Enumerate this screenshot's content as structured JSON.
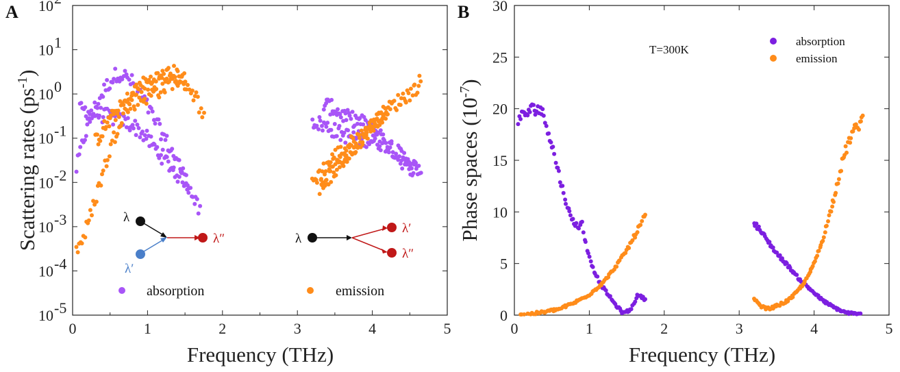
{
  "colors": {
    "absorption": "#a855f7",
    "absorptionB": "#7c1fe0",
    "emission": "#ff8c1a",
    "dark": "#111111",
    "blue": "#4a7fc9",
    "red": "#c01818"
  },
  "chart_data": [
    {
      "panel": "A",
      "type": "scatter",
      "title": "",
      "xlabel": "Frequency (THz)",
      "ylabel_main": "Scattering rates (ps",
      "ylabel_sup": "-1",
      "ylabel_end": ")",
      "xscale": "linear",
      "yscale": "log",
      "xlim": [
        0,
        5
      ],
      "ylim": [
        1e-05,
        100
      ],
      "xticks": [
        0,
        1,
        2,
        3,
        4,
        5
      ],
      "xtick_labels": [
        "0",
        "1",
        "2",
        "3",
        "4",
        "5"
      ],
      "yticks_exp": [
        -5,
        -4,
        -3,
        -2,
        -1,
        0,
        1,
        2
      ],
      "ytick_base": "10",
      "ytick_exp_labels": [
        "-5",
        "-4",
        "-3",
        "-2",
        "-1",
        "0",
        "1",
        "2"
      ],
      "legend": [
        {
          "name": "absorption",
          "color_key": "absorption"
        },
        {
          "name": "emission",
          "color_key": "emission"
        }
      ],
      "series": [
        {
          "name": "absorption",
          "branches": [
            {
              "x": [
                0.05,
                0.15,
                0.3,
                0.45,
                0.6,
                0.7,
                0.8,
                0.9,
                1.0,
                1.1,
                1.2,
                1.3,
                1.4,
                1.5,
                1.6,
                1.7
              ],
              "y": [
                0.02,
                0.1,
                0.5,
                1.5,
                3.0,
                2.5,
                1.8,
                1.0,
                0.5,
                0.25,
                0.12,
                0.06,
                0.03,
                0.012,
                0.005,
                0.002
              ]
            },
            {
              "x": [
                0.1,
                0.2,
                0.35,
                0.5,
                0.65,
                0.8,
                0.95,
                1.1,
                1.25,
                1.4,
                1.55
              ],
              "y": [
                0.5,
                0.4,
                0.35,
                0.3,
                0.25,
                0.2,
                0.12,
                0.06,
                0.03,
                0.015,
                0.01
              ]
            },
            {
              "x": [
                3.2,
                3.4,
                3.6,
                3.8,
                4.0,
                4.2,
                4.4,
                4.6
              ],
              "y": [
                0.25,
                0.18,
                0.12,
                0.1,
                0.09,
                0.07,
                0.04,
                0.02
              ]
            },
            {
              "x": [
                3.35,
                3.5,
                3.65,
                3.8,
                3.95,
                4.1,
                4.25,
                4.4,
                4.55,
                4.65
              ],
              "y": [
                0.6,
                0.45,
                0.3,
                0.25,
                0.2,
                0.12,
                0.06,
                0.03,
                0.02,
                0.02
              ]
            }
          ]
        },
        {
          "name": "emission",
          "branches": [
            {
              "x": [
                0.05,
                0.15,
                0.25,
                0.35,
                0.45,
                0.55,
                0.65,
                0.75,
                0.85,
                0.95,
                1.05,
                1.15,
                1.25,
                1.35,
                1.45,
                1.55,
                1.65,
                1.75
              ],
              "y": [
                0.0003,
                0.0006,
                0.002,
                0.008,
                0.03,
                0.1,
                0.3,
                0.5,
                0.7,
                0.8,
                1.0,
                1.2,
                1.5,
                2.0,
                2.0,
                1.5,
                0.8,
                0.3
              ]
            },
            {
              "x": [
                0.3,
                0.45,
                0.6,
                0.75,
                0.9,
                1.05,
                1.2,
                1.35,
                1.5
              ],
              "y": [
                0.08,
                0.2,
                0.4,
                0.8,
                1.5,
                2.0,
                2.5,
                3.0,
                2.0
              ]
            },
            {
              "x": [
                3.2,
                3.35,
                3.5,
                3.65,
                3.8,
                3.95,
                4.1,
                4.25,
                4.4,
                4.55,
                4.65
              ],
              "y": [
                0.01,
                0.02,
                0.04,
                0.06,
                0.1,
                0.15,
                0.3,
                0.5,
                0.8,
                1.2,
                2.0
              ]
            },
            {
              "x": [
                3.3,
                3.45,
                3.6,
                3.75,
                3.9,
                4.05,
                4.2
              ],
              "y": [
                0.008,
                0.015,
                0.03,
                0.06,
                0.12,
                0.25,
                0.4
              ]
            }
          ]
        }
      ],
      "annotations": {
        "left_diagram": {
          "lambda": "λ",
          "lambda_prime": "λ′",
          "lambda_dprime": "λ″"
        },
        "right_diagram": {
          "lambda": "λ",
          "lambda_prime": "λ′",
          "lambda_dprime": "λ″"
        }
      }
    },
    {
      "panel": "B",
      "type": "scatter",
      "title": "",
      "annotation": "T=300K",
      "xlabel": "Frequency (THz)",
      "ylabel_main": "Phase spaces (10",
      "ylabel_sup": "-7",
      "ylabel_end": ")",
      "xlim": [
        0,
        5
      ],
      "ylim": [
        0,
        30
      ],
      "xticks": [
        0,
        1,
        2,
        3,
        4,
        5
      ],
      "xtick_labels": [
        "0",
        "1",
        "2",
        "3",
        "4",
        "5"
      ],
      "yticks": [
        0,
        5,
        10,
        15,
        20,
        25,
        30
      ],
      "ytick_labels": [
        "0",
        "5",
        "10",
        "15",
        "20",
        "25",
        "30"
      ],
      "legend": [
        {
          "name": "absorption",
          "color_key": "absorptionB"
        },
        {
          "name": "emission",
          "color_key": "emission"
        }
      ],
      "series": [
        {
          "name": "absorption",
          "branches": [
            {
              "x": [
                0.05,
                0.15,
                0.25,
                0.35,
                0.45,
                0.55,
                0.65,
                0.75,
                0.85,
                0.9,
                0.95,
                1.05,
                1.15,
                1.25,
                1.35,
                1.45,
                1.55,
                1.65,
                1.75
              ],
              "y": [
                19,
                19.5,
                20,
                20,
                18,
                15,
                12,
                9.5,
                8.5,
                9,
                7,
                4.5,
                3,
                2,
                1,
                0.2,
                0.5,
                2,
                1.5
              ]
            },
            {
              "x": [
                3.2,
                3.35,
                3.5,
                3.65,
                3.8,
                3.95,
                4.1,
                4.25,
                4.4,
                4.55,
                4.65
              ],
              "y": [
                9,
                7.5,
                6,
                4.8,
                3.5,
                2.5,
                1.5,
                0.8,
                0.3,
                0.1,
                0.05
              ]
            }
          ]
        },
        {
          "name": "emission",
          "branches": [
            {
              "x": [
                0.05,
                0.2,
                0.4,
                0.6,
                0.8,
                0.9,
                1.0,
                1.1,
                1.2,
                1.3,
                1.4,
                1.5,
                1.6,
                1.7,
                1.75
              ],
              "y": [
                0.05,
                0.1,
                0.3,
                0.6,
                1.2,
                1.6,
                2.0,
                2.6,
                3.3,
                4.2,
                5.2,
                6.3,
                7.6,
                9.0,
                9.7
              ]
            },
            {
              "x": [
                3.2,
                3.3,
                3.4,
                3.5,
                3.6,
                3.7,
                3.8,
                3.9,
                4.0,
                4.1,
                4.2,
                4.3,
                4.4,
                4.5,
                4.6,
                4.65
              ],
              "y": [
                1.5,
                0.8,
                0.6,
                0.9,
                1.2,
                1.7,
                2.5,
                3.5,
                5.0,
                7.0,
                9.5,
                12.5,
                15.5,
                17.5,
                18.5,
                19
              ]
            }
          ]
        }
      ]
    }
  ]
}
